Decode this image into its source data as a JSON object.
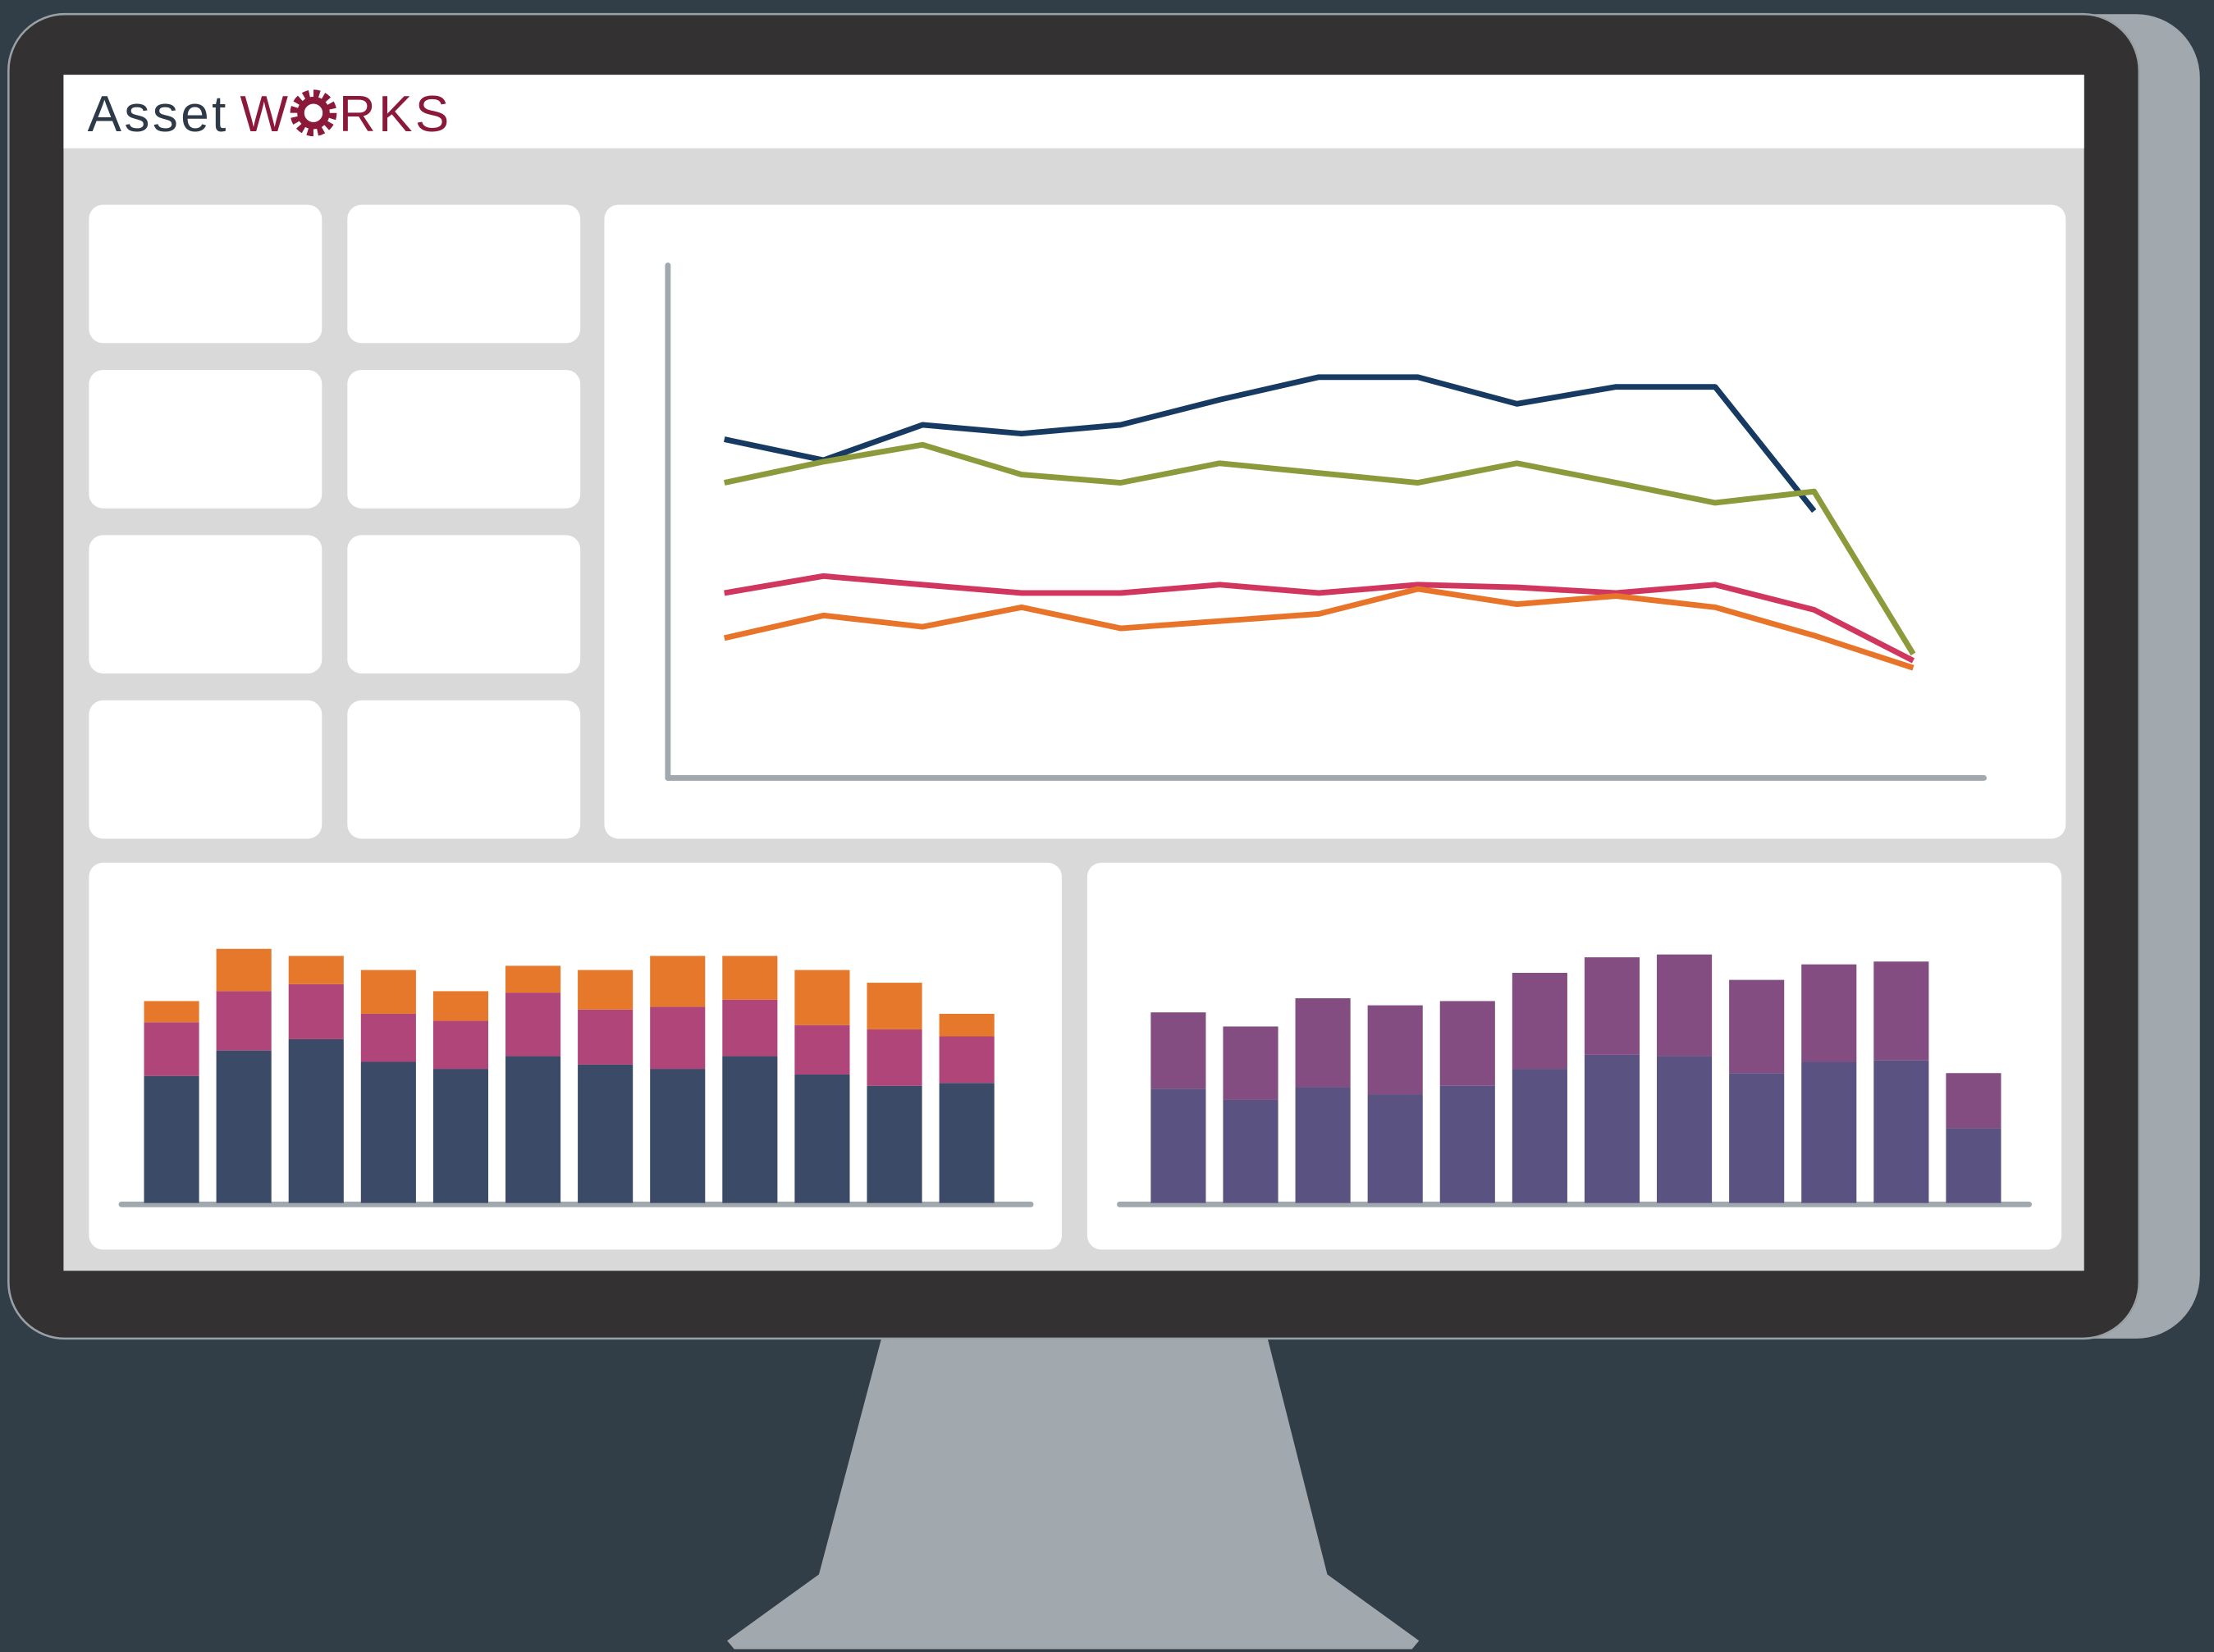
{
  "header": {
    "logo": [
      "Asset",
      "W",
      "RKS"
    ]
  },
  "chart_data": [
    {
      "type": "line",
      "categories": [
        null,
        null,
        null,
        null,
        null,
        null,
        null,
        null,
        null,
        null,
        null,
        null,
        null
      ],
      "ylim": [
        0,
        100
      ],
      "series": [
        {
          "color": "#163a62",
          "values": [
            66.1,
            62.0,
            68.9,
            67.2,
            68.9,
            73.8,
            78.2,
            78.2,
            73.0,
            76.3,
            76.3,
            52.1,
            null
          ]
        },
        {
          "color": "#8c9a3c",
          "values": [
            57.6,
            61.7,
            65.0,
            59.2,
            57.6,
            61.4,
            59.5,
            57.6,
            61.4,
            57.6,
            53.7,
            55.9,
            24.2
          ]
        },
        {
          "color": "#d0365e",
          "values": [
            36.1,
            39.4,
            37.7,
            36.1,
            36.1,
            37.7,
            36.1,
            37.7,
            37.2,
            36.1,
            37.7,
            32.8,
            22.9
          ]
        },
        {
          "color": "#e8742a",
          "values": [
            27.3,
            31.7,
            29.5,
            33.3,
            29.2,
            30.6,
            32.0,
            36.9,
            33.9,
            35.5,
            33.3,
            27.8,
            21.5
          ]
        }
      ]
    },
    {
      "type": "bar",
      "stacked": true,
      "categories": [
        null,
        null,
        null,
        null,
        null,
        null,
        null,
        null,
        null,
        null,
        null,
        null
      ],
      "ylim": [
        0,
        200
      ],
      "series": [
        {
          "color": "#3b4a66",
          "values": [
            90,
            108,
            116,
            100,
            95,
            104,
            98,
            95,
            104,
            91,
            83,
            85
          ]
        },
        {
          "color": "#b0457a",
          "values": [
            38,
            42,
            39,
            34,
            34,
            45,
            39,
            44,
            40,
            35,
            40,
            33
          ]
        },
        {
          "color": "#e5782a",
          "values": [
            15,
            30,
            20,
            31,
            21,
            19,
            28,
            36,
            31,
            39,
            33,
            16
          ]
        }
      ]
    },
    {
      "type": "bar",
      "stacked": true,
      "categories": [
        null,
        null,
        null,
        null,
        null,
        null,
        null,
        null,
        null,
        null,
        null,
        null
      ],
      "ylim": [
        0,
        200
      ],
      "series": [
        {
          "color": "#5a5280",
          "values": [
            81,
            73,
            82,
            77,
            83,
            95,
            105,
            104,
            92,
            100,
            101,
            53
          ]
        },
        {
          "color": "#834d82",
          "values": [
            54,
            52,
            63,
            63,
            60,
            68,
            69,
            72,
            66,
            69,
            70,
            39
          ]
        }
      ]
    }
  ]
}
